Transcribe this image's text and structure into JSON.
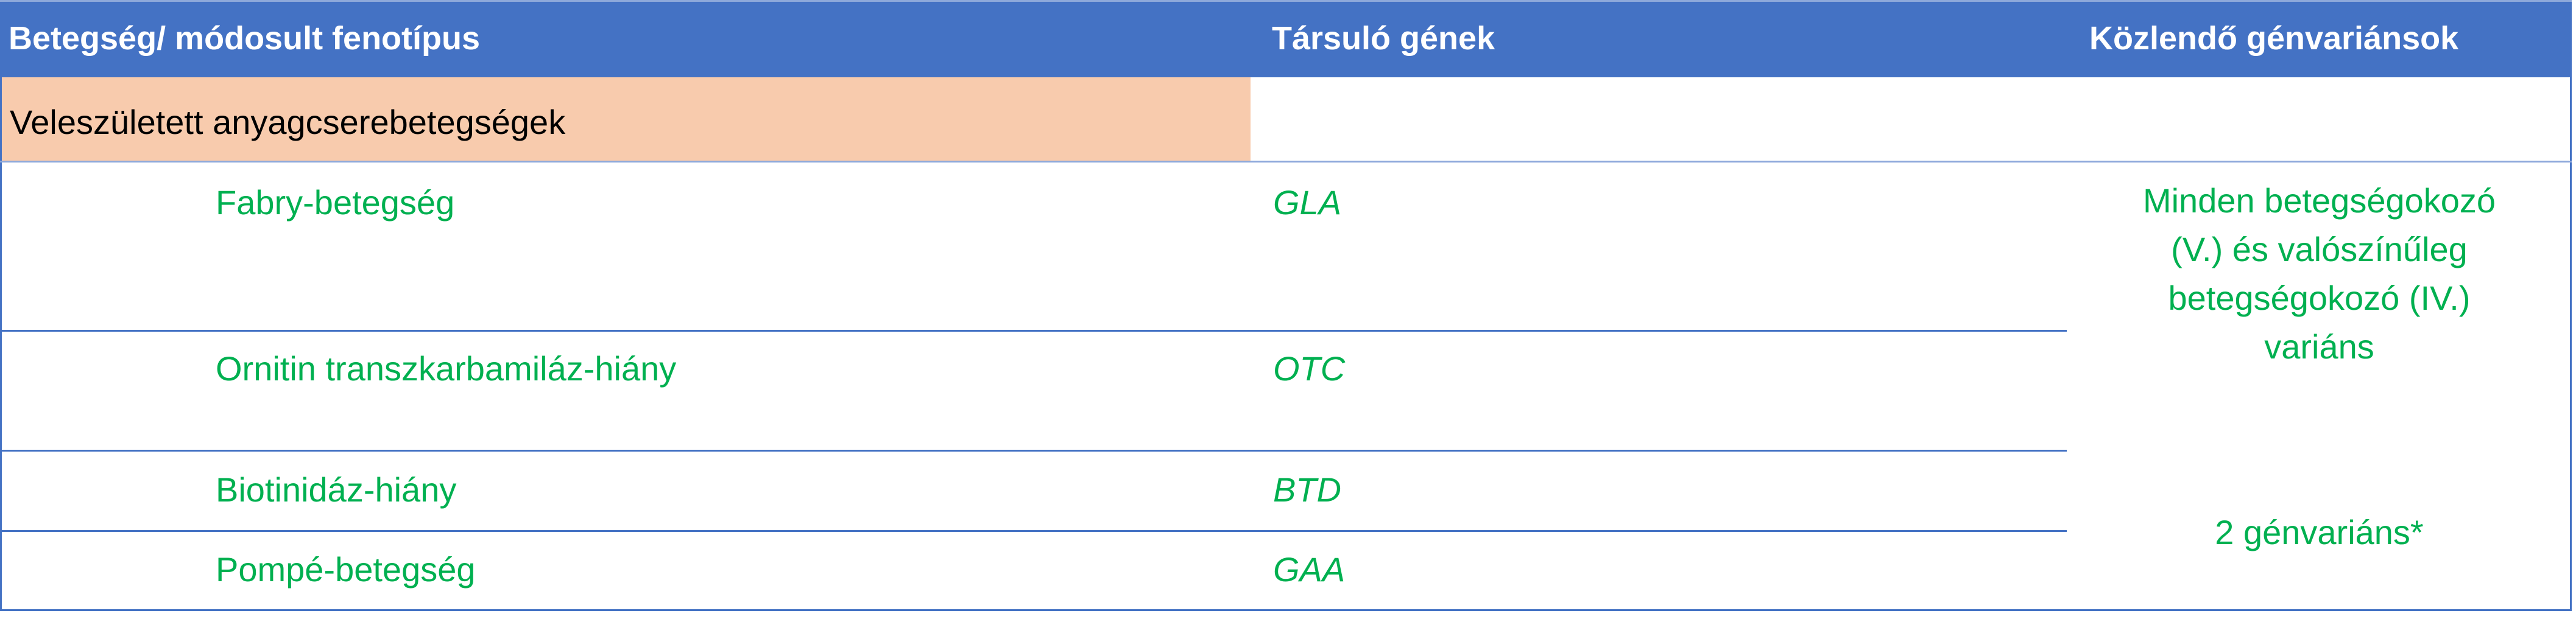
{
  "header": {
    "col1": "Betegség/ módosult fenotípus",
    "col2": "Társuló gének",
    "col3": "Közlendő génvariánsok"
  },
  "category": "Veleszületett anyagcserebetegségek",
  "rows": [
    {
      "disease": "Fabry-betegség",
      "gene": "GLA"
    },
    {
      "disease": "Ornitin transzkarbamiláz-hiány",
      "gene": "OTC"
    },
    {
      "disease": "Biotinidáz-hiány",
      "gene": "BTD"
    },
    {
      "disease": "Pompé-betegség",
      "gene": "GAA"
    }
  ],
  "variants": {
    "group1_lines": [
      "Minden betegségokozó",
      "(V.) és valószínűleg",
      "betegségokozó (IV.)",
      "variáns"
    ],
    "group2": "2 génvariáns*"
  },
  "colors": {
    "header": "#4472C4",
    "category": "#F8CBAD",
    "text_green": "#00B050",
    "border": "#4472C4"
  }
}
